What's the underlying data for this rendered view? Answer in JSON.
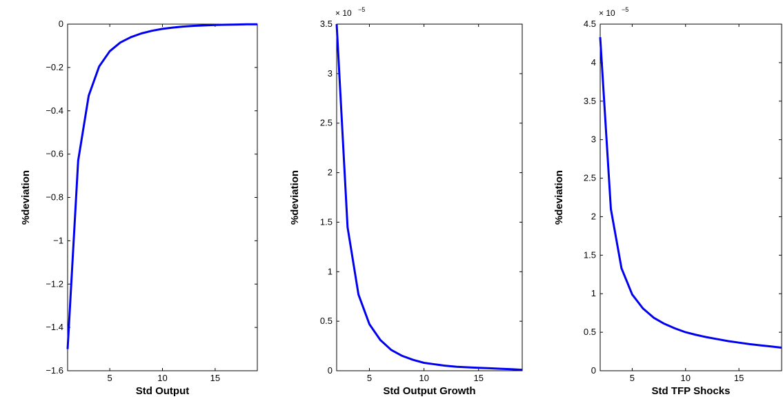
{
  "chart_data": [
    {
      "type": "line",
      "title": "",
      "xlabel": "Std Output",
      "ylabel": "%deviation",
      "xlim": [
        1,
        19
      ],
      "ylim": [
        -1.6,
        0
      ],
      "xticks": [
        5,
        10,
        15
      ],
      "xtick_labels": [
        "5",
        "10",
        "15"
      ],
      "yticks": [
        0,
        -0.2,
        -0.4,
        -0.6,
        -0.8,
        -1,
        -1.2,
        -1.4,
        -1.6
      ],
      "ytick_labels": [
        "0",
        "−0.2",
        "−0.4",
        "−0.6",
        "−0.8",
        "−1",
        "−1.2",
        "−1.4",
        "−1.6"
      ],
      "exponent_label": "",
      "series": [
        {
          "color": "#0000ee",
          "x": [
            1,
            2,
            3,
            4,
            5,
            6,
            7,
            8,
            9,
            10,
            11,
            12,
            13,
            14,
            15,
            16,
            17,
            18,
            19
          ],
          "values": [
            -1.5,
            -0.63,
            -0.33,
            -0.195,
            -0.125,
            -0.085,
            -0.06,
            -0.043,
            -0.031,
            -0.022,
            -0.016,
            -0.011,
            -0.008,
            -0.006,
            -0.004,
            -0.003,
            -0.002,
            -0.001,
            -0.0005
          ]
        }
      ]
    },
    {
      "type": "line",
      "title": "",
      "xlabel": "Std Output Growth",
      "ylabel": "%deviation",
      "xlim": [
        2,
        19
      ],
      "ylim": [
        0,
        3.5
      ],
      "xticks": [
        5,
        10,
        15
      ],
      "xtick_labels": [
        "5",
        "10",
        "15"
      ],
      "yticks": [
        0,
        0.5,
        1,
        1.5,
        2,
        2.5,
        3,
        3.5
      ],
      "ytick_labels": [
        "0",
        "0.5",
        "1",
        "1.5",
        "2",
        "2.5",
        "3",
        "3.5"
      ],
      "exponent_label": "× 10",
      "exponent_power": "−5",
      "series": [
        {
          "color": "#0000ee",
          "x": [
            2,
            3,
            4,
            5,
            6,
            7,
            8,
            9,
            10,
            11,
            12,
            13,
            14,
            15,
            16,
            17,
            18,
            19
          ],
          "values": [
            3.5,
            1.45,
            0.77,
            0.47,
            0.31,
            0.21,
            0.15,
            0.11,
            0.08,
            0.065,
            0.05,
            0.04,
            0.035,
            0.03,
            0.025,
            0.02,
            0.015,
            0.01
          ]
        }
      ]
    },
    {
      "type": "line",
      "title": "",
      "xlabel": "Std TFP Shocks",
      "ylabel": "%deviation",
      "xlim": [
        2,
        19
      ],
      "ylim": [
        0,
        4.5
      ],
      "xticks": [
        5,
        10,
        15
      ],
      "xtick_labels": [
        "5",
        "10",
        "15"
      ],
      "yticks": [
        0,
        0.5,
        1,
        1.5,
        2,
        2.5,
        3,
        3.5,
        4,
        4.5
      ],
      "ytick_labels": [
        "0",
        "0.5",
        "1",
        "1.5",
        "2",
        "2.5",
        "3",
        "3.5",
        "4",
        "4.5"
      ],
      "exponent_label": "× 10",
      "exponent_power": "−5",
      "series": [
        {
          "color": "#0000ee",
          "x": [
            2,
            3,
            4,
            5,
            6,
            7,
            8,
            9,
            10,
            11,
            12,
            13,
            14,
            15,
            16,
            17,
            18,
            19
          ],
          "values": [
            4.33,
            2.1,
            1.33,
            0.99,
            0.81,
            0.69,
            0.61,
            0.55,
            0.5,
            0.465,
            0.435,
            0.41,
            0.385,
            0.365,
            0.345,
            0.33,
            0.315,
            0.3
          ]
        }
      ]
    }
  ]
}
